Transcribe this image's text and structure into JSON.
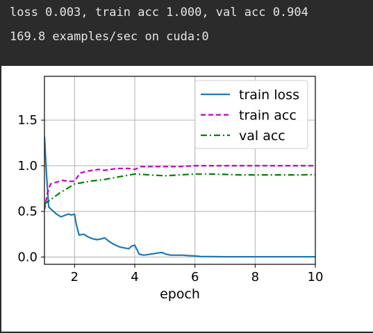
{
  "console": {
    "line1": "loss 0.003, train acc 1.000, val acc 0.904",
    "line2": "169.8 examples/sec on cuda:0"
  },
  "chart_data": {
    "type": "line",
    "title": "",
    "xlabel": "epoch",
    "ylabel": "",
    "xlim": [
      1,
      10
    ],
    "ylim": [
      -0.08,
      1.98
    ],
    "xticks": [
      2,
      4,
      6,
      8,
      10
    ],
    "yticks": [
      0.0,
      0.5,
      1.0,
      1.5
    ],
    "xtick_labels": [
      "2",
      "4",
      "6",
      "8",
      "10"
    ],
    "ytick_labels": [
      "0.0",
      "0.5",
      "1.0",
      "1.5"
    ],
    "grid": true,
    "legend_position": "upper-right",
    "series": [
      {
        "name": "train loss",
        "color": "#1f77b4",
        "style": "solid",
        "x": [
          1.0,
          1.07,
          1.14,
          1.2,
          1.3,
          1.4,
          1.55,
          1.7,
          1.8,
          1.9,
          2.0,
          2.05,
          2.15,
          2.3,
          2.45,
          2.6,
          2.75,
          2.9,
          3.0,
          3.15,
          3.3,
          3.5,
          3.65,
          3.8,
          3.9,
          4.0,
          4.15,
          4.3,
          4.5,
          4.7,
          4.9,
          5.05,
          5.2,
          5.4,
          5.6,
          5.8,
          6.0,
          6.2,
          6.5,
          7.0,
          7.5,
          8.0,
          8.5,
          9.0,
          9.5,
          10.0
        ],
        "y": [
          1.32,
          0.9,
          0.55,
          0.53,
          0.5,
          0.47,
          0.44,
          0.46,
          0.47,
          0.46,
          0.47,
          0.37,
          0.24,
          0.25,
          0.22,
          0.2,
          0.19,
          0.2,
          0.21,
          0.17,
          0.14,
          0.11,
          0.1,
          0.09,
          0.12,
          0.13,
          0.03,
          0.02,
          0.03,
          0.04,
          0.05,
          0.03,
          0.02,
          0.02,
          0.02,
          0.015,
          0.012,
          0.005,
          0.004,
          0.003,
          0.003,
          0.003,
          0.003,
          0.003,
          0.003,
          0.003
        ]
      },
      {
        "name": "train acc",
        "color": "#bf00bf",
        "style": "dashed",
        "x": [
          1.0,
          1.1,
          1.2,
          1.4,
          1.6,
          1.8,
          2.0,
          2.1,
          2.2,
          2.4,
          2.6,
          2.8,
          3.0,
          3.2,
          3.4,
          3.6,
          3.8,
          4.0,
          4.2,
          4.4,
          4.6,
          4.8,
          5.0,
          5.5,
          6.0,
          6.5,
          7.0,
          7.5,
          8.0,
          8.5,
          9.0,
          9.5,
          10.0
        ],
        "y": [
          0.52,
          0.7,
          0.8,
          0.82,
          0.84,
          0.83,
          0.83,
          0.88,
          0.92,
          0.94,
          0.95,
          0.96,
          0.95,
          0.96,
          0.97,
          0.97,
          0.97,
          0.96,
          0.99,
          0.99,
          0.99,
          0.99,
          0.99,
          0.99,
          1.0,
          1.0,
          1.0,
          1.0,
          1.0,
          1.0,
          1.0,
          1.0,
          1.0
        ]
      },
      {
        "name": "val acc",
        "color": "#008000",
        "style": "dashdot",
        "x": [
          1.0,
          1.5,
          2.0,
          2.5,
          3.0,
          3.5,
          4.0,
          4.5,
          5.0,
          5.5,
          6.0,
          6.5,
          7.0,
          7.5,
          8.0,
          8.5,
          9.0,
          9.5,
          10.0
        ],
        "y": [
          0.58,
          0.7,
          0.8,
          0.83,
          0.85,
          0.88,
          0.91,
          0.9,
          0.89,
          0.9,
          0.91,
          0.91,
          0.905,
          0.9,
          0.9,
          0.9,
          0.9,
          0.9,
          0.904
        ]
      }
    ]
  }
}
